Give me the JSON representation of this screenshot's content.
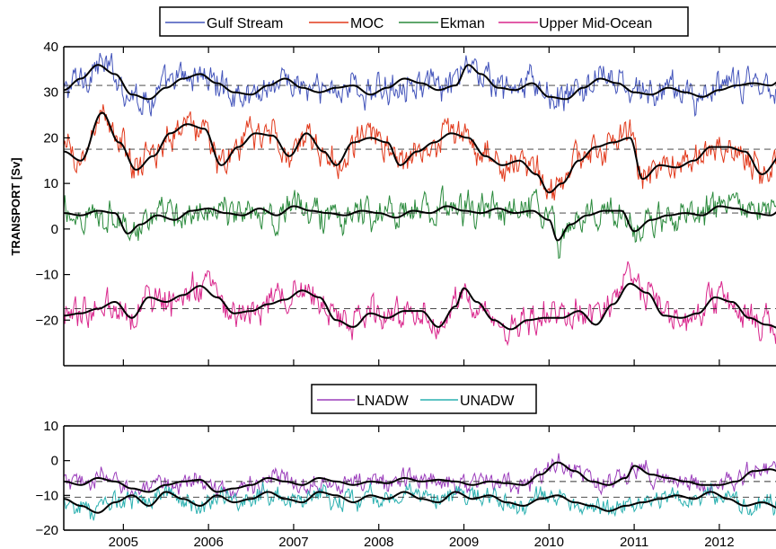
{
  "chart_data": [
    {
      "type": "line",
      "ylabel": "TRANSPORT [Sv]",
      "ylim": [
        -30,
        40
      ],
      "xlim": [
        2004.3,
        2012.75
      ],
      "yticks": [
        40,
        30,
        20,
        10,
        0,
        -10,
        -20
      ],
      "xticks": [
        2005,
        2006,
        2007,
        2008,
        2009,
        2010,
        2011,
        2012
      ],
      "legend_position": "top",
      "series": [
        {
          "name": "Gulf Stream",
          "color": "#4455bb",
          "mean": 31.5,
          "smooth": [
            [
              2004.3,
              30.5
            ],
            [
              2004.5,
              33
            ],
            [
              2004.7,
              36
            ],
            [
              2004.9,
              34
            ],
            [
              2005.1,
              29.5
            ],
            [
              2005.3,
              28.5
            ],
            [
              2005.5,
              31
            ],
            [
              2005.7,
              33
            ],
            [
              2005.9,
              34
            ],
            [
              2006.1,
              32
            ],
            [
              2006.3,
              30
            ],
            [
              2006.5,
              29.5
            ],
            [
              2006.7,
              31.5
            ],
            [
              2006.9,
              33
            ],
            [
              2007.1,
              31
            ],
            [
              2007.3,
              30
            ],
            [
              2007.5,
              31
            ],
            [
              2007.7,
              31.5
            ],
            [
              2007.9,
              29.5
            ],
            [
              2008.1,
              31
            ],
            [
              2008.3,
              33
            ],
            [
              2008.5,
              32
            ],
            [
              2008.7,
              30.5
            ],
            [
              2008.9,
              31.5
            ],
            [
              2009.05,
              36
            ],
            [
              2009.2,
              34
            ],
            [
              2009.4,
              31
            ],
            [
              2009.6,
              30.5
            ],
            [
              2009.8,
              32
            ],
            [
              2010.0,
              29
            ],
            [
              2010.2,
              28.5
            ],
            [
              2010.4,
              31
            ],
            [
              2010.6,
              33
            ],
            [
              2010.8,
              32
            ],
            [
              2011.0,
              30
            ],
            [
              2011.2,
              29.5
            ],
            [
              2011.4,
              31
            ],
            [
              2011.6,
              30
            ],
            [
              2011.8,
              29
            ],
            [
              2012.0,
              30.5
            ],
            [
              2012.2,
              31.5
            ],
            [
              2012.4,
              32
            ],
            [
              2012.6,
              31.5
            ],
            [
              2012.75,
              33
            ]
          ]
        },
        {
          "name": "MOC",
          "color": "#e23a1c",
          "mean": 17.5,
          "smooth": [
            [
              2004.3,
              17
            ],
            [
              2004.5,
              15
            ],
            [
              2004.75,
              25.5
            ],
            [
              2004.95,
              19
            ],
            [
              2005.15,
              13
            ],
            [
              2005.35,
              16
            ],
            [
              2005.55,
              21
            ],
            [
              2005.75,
              23
            ],
            [
              2005.95,
              22
            ],
            [
              2006.15,
              14
            ],
            [
              2006.35,
              18
            ],
            [
              2006.55,
              21
            ],
            [
              2006.75,
              20.5
            ],
            [
              2006.95,
              16
            ],
            [
              2007.15,
              21
            ],
            [
              2007.35,
              17
            ],
            [
              2007.5,
              14
            ],
            [
              2007.7,
              19
            ],
            [
              2007.9,
              20
            ],
            [
              2008.1,
              19
            ],
            [
              2008.25,
              14
            ],
            [
              2008.45,
              17
            ],
            [
              2008.65,
              19
            ],
            [
              2008.85,
              21
            ],
            [
              2009.05,
              20
            ],
            [
              2009.25,
              16
            ],
            [
              2009.45,
              14
            ],
            [
              2009.65,
              15
            ],
            [
              2009.85,
              12
            ],
            [
              2010.0,
              8
            ],
            [
              2010.15,
              10
            ],
            [
              2010.35,
              15
            ],
            [
              2010.55,
              18
            ],
            [
              2010.75,
              19
            ],
            [
              2010.95,
              20
            ],
            [
              2011.1,
              11
            ],
            [
              2011.3,
              14
            ],
            [
              2011.5,
              13.5
            ],
            [
              2011.7,
              15
            ],
            [
              2011.9,
              18
            ],
            [
              2012.1,
              18
            ],
            [
              2012.3,
              17
            ],
            [
              2012.5,
              12
            ],
            [
              2012.75,
              16.5
            ]
          ]
        },
        {
          "name": "Ekman",
          "color": "#2a8a3c",
          "mean": 3.5,
          "smooth": [
            [
              2004.3,
              3.5
            ],
            [
              2004.5,
              3
            ],
            [
              2004.7,
              4
            ],
            [
              2004.9,
              3.5
            ],
            [
              2005.05,
              -1
            ],
            [
              2005.2,
              1
            ],
            [
              2005.4,
              3
            ],
            [
              2005.6,
              2
            ],
            [
              2005.8,
              4
            ],
            [
              2006.0,
              4.5
            ],
            [
              2006.2,
              3.5
            ],
            [
              2006.4,
              3
            ],
            [
              2006.6,
              4.5
            ],
            [
              2006.8,
              3
            ],
            [
              2007.0,
              5
            ],
            [
              2007.2,
              4
            ],
            [
              2007.4,
              3.5
            ],
            [
              2007.6,
              3
            ],
            [
              2007.8,
              4
            ],
            [
              2008.0,
              3.5
            ],
            [
              2008.2,
              2.5
            ],
            [
              2008.4,
              4
            ],
            [
              2008.6,
              3.5
            ],
            [
              2008.8,
              5
            ],
            [
              2009.0,
              4
            ],
            [
              2009.2,
              3.5
            ],
            [
              2009.4,
              4.5
            ],
            [
              2009.6,
              3.5
            ],
            [
              2009.8,
              4
            ],
            [
              2010.0,
              2
            ],
            [
              2010.1,
              -2.5
            ],
            [
              2010.25,
              1
            ],
            [
              2010.45,
              3
            ],
            [
              2010.65,
              4
            ],
            [
              2010.85,
              4
            ],
            [
              2011.0,
              -0.5
            ],
            [
              2011.2,
              2
            ],
            [
              2011.4,
              3
            ],
            [
              2011.6,
              3.5
            ],
            [
              2011.8,
              3
            ],
            [
              2012.0,
              5
            ],
            [
              2012.2,
              4.5
            ],
            [
              2012.4,
              3.5
            ],
            [
              2012.6,
              3
            ],
            [
              2012.75,
              4.5
            ]
          ]
        },
        {
          "name": "Upper Mid-Ocean",
          "color": "#d9268c",
          "mean": -17.5,
          "smooth": [
            [
              2004.3,
              -19
            ],
            [
              2004.5,
              -18.5
            ],
            [
              2004.7,
              -17.5
            ],
            [
              2004.9,
              -16
            ],
            [
              2005.1,
              -19.5
            ],
            [
              2005.3,
              -15
            ],
            [
              2005.5,
              -16
            ],
            [
              2005.7,
              -14.5
            ],
            [
              2005.9,
              -12.5
            ],
            [
              2006.1,
              -15
            ],
            [
              2006.3,
              -18.5
            ],
            [
              2006.5,
              -18
            ],
            [
              2006.7,
              -16.5
            ],
            [
              2006.9,
              -15.5
            ],
            [
              2007.1,
              -13.5
            ],
            [
              2007.3,
              -15
            ],
            [
              2007.5,
              -20
            ],
            [
              2007.7,
              -21.5
            ],
            [
              2007.9,
              -18.5
            ],
            [
              2008.1,
              -19.5
            ],
            [
              2008.3,
              -18
            ],
            [
              2008.5,
              -18
            ],
            [
              2008.7,
              -21.5
            ],
            [
              2008.9,
              -17
            ],
            [
              2009.0,
              -13
            ],
            [
              2009.15,
              -16
            ],
            [
              2009.35,
              -20
            ],
            [
              2009.55,
              -22
            ],
            [
              2009.75,
              -20
            ],
            [
              2009.95,
              -19.5
            ],
            [
              2010.15,
              -19.5
            ],
            [
              2010.35,
              -18
            ],
            [
              2010.55,
              -21
            ],
            [
              2010.75,
              -16.5
            ],
            [
              2010.95,
              -12
            ],
            [
              2011.15,
              -14
            ],
            [
              2011.35,
              -19
            ],
            [
              2011.55,
              -19.5
            ],
            [
              2011.75,
              -18.5
            ],
            [
              2011.95,
              -15
            ],
            [
              2012.15,
              -16
            ],
            [
              2012.35,
              -19.5
            ],
            [
              2012.55,
              -21
            ],
            [
              2012.75,
              -22
            ]
          ]
        }
      ]
    },
    {
      "type": "line",
      "ylim": [
        -20,
        10
      ],
      "xlim": [
        2004.3,
        2012.75
      ],
      "yticks": [
        10,
        0,
        -10,
        -20
      ],
      "xticks": [
        2005,
        2006,
        2007,
        2008,
        2009,
        2010,
        2011,
        2012
      ],
      "legend_position": "top",
      "series": [
        {
          "name": "LNADW",
          "color": "#9b3dbb",
          "mean": -6,
          "smooth": [
            [
              2004.3,
              -6
            ],
            [
              2004.5,
              -7
            ],
            [
              2004.7,
              -5
            ],
            [
              2004.9,
              -6
            ],
            [
              2005.1,
              -8
            ],
            [
              2005.3,
              -9
            ],
            [
              2005.5,
              -7
            ],
            [
              2005.7,
              -6
            ],
            [
              2005.9,
              -5.5
            ],
            [
              2006.1,
              -9
            ],
            [
              2006.3,
              -8
            ],
            [
              2006.5,
              -7
            ],
            [
              2006.7,
              -5
            ],
            [
              2006.9,
              -6
            ],
            [
              2007.1,
              -7
            ],
            [
              2007.3,
              -5
            ],
            [
              2007.5,
              -6
            ],
            [
              2007.7,
              -7
            ],
            [
              2007.9,
              -6
            ],
            [
              2008.1,
              -6.5
            ],
            [
              2008.3,
              -5
            ],
            [
              2008.5,
              -6
            ],
            [
              2008.7,
              -5.5
            ],
            [
              2008.9,
              -6
            ],
            [
              2009.1,
              -7
            ],
            [
              2009.3,
              -6
            ],
            [
              2009.5,
              -6.5
            ],
            [
              2009.7,
              -7
            ],
            [
              2009.9,
              -4
            ],
            [
              2010.1,
              -0.5
            ],
            [
              2010.3,
              -3
            ],
            [
              2010.5,
              -6
            ],
            [
              2010.7,
              -7
            ],
            [
              2010.9,
              -5
            ],
            [
              2011.0,
              -1.5
            ],
            [
              2011.2,
              -4
            ],
            [
              2011.4,
              -5
            ],
            [
              2011.6,
              -6
            ],
            [
              2011.8,
              -7
            ],
            [
              2012.0,
              -7
            ],
            [
              2012.2,
              -6
            ],
            [
              2012.4,
              -3
            ],
            [
              2012.6,
              -2.5
            ],
            [
              2012.75,
              -3.5
            ]
          ]
        },
        {
          "name": "UNADW",
          "color": "#2ab0b0",
          "mean": -10.5,
          "smooth": [
            [
              2004.3,
              -11
            ],
            [
              2004.5,
              -13
            ],
            [
              2004.7,
              -15
            ],
            [
              2004.9,
              -12
            ],
            [
              2005.1,
              -10
            ],
            [
              2005.3,
              -13
            ],
            [
              2005.5,
              -9
            ],
            [
              2005.7,
              -11
            ],
            [
              2005.9,
              -13
            ],
            [
              2006.1,
              -10
            ],
            [
              2006.3,
              -12
            ],
            [
              2006.5,
              -11
            ],
            [
              2006.7,
              -9
            ],
            [
              2006.9,
              -11
            ],
            [
              2007.1,
              -12
            ],
            [
              2007.3,
              -9
            ],
            [
              2007.5,
              -10
            ],
            [
              2007.7,
              -12
            ],
            [
              2007.9,
              -10
            ],
            [
              2008.1,
              -11
            ],
            [
              2008.3,
              -9
            ],
            [
              2008.5,
              -11
            ],
            [
              2008.7,
              -12
            ],
            [
              2008.9,
              -9
            ],
            [
              2009.1,
              -11
            ],
            [
              2009.3,
              -10
            ],
            [
              2009.5,
              -12
            ],
            [
              2009.7,
              -13
            ],
            [
              2009.9,
              -11
            ],
            [
              2010.1,
              -10
            ],
            [
              2010.3,
              -12
            ],
            [
              2010.5,
              -13
            ],
            [
              2010.7,
              -14.5
            ],
            [
              2010.9,
              -13
            ],
            [
              2011.1,
              -12
            ],
            [
              2011.3,
              -11
            ],
            [
              2011.5,
              -10
            ],
            [
              2011.7,
              -11
            ],
            [
              2011.9,
              -9
            ],
            [
              2012.1,
              -11
            ],
            [
              2012.3,
              -13
            ],
            [
              2012.5,
              -12
            ],
            [
              2012.75,
              -14
            ]
          ]
        }
      ]
    }
  ]
}
